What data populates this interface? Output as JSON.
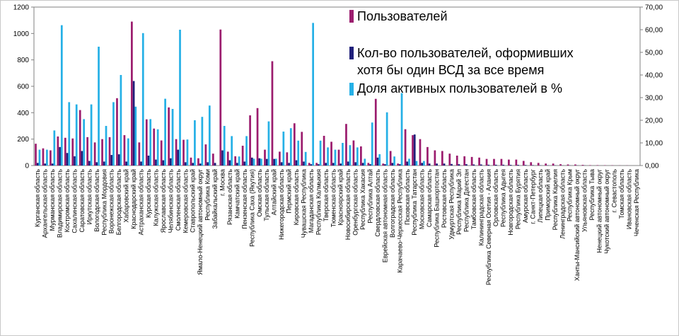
{
  "chart_data": {
    "type": "bar",
    "title": "",
    "xlabel": "",
    "ylabel": "",
    "ylim": [
      0,
      1200
    ],
    "y2lim": [
      0,
      70
    ],
    "yticks": [
      0,
      200,
      400,
      600,
      800,
      1000,
      1200
    ],
    "y2ticks": [
      "0,00",
      "10,00",
      "20,00",
      "30,00",
      "40,00",
      "50,00",
      "60,00",
      "70,00"
    ],
    "legend_position": "top-right",
    "categories": [
      "Курганская область",
      "Архангельская область",
      "Мурманская область",
      "Владимирская область",
      "Костромская область",
      "Сахалинская область",
      "Саратовская область",
      "Иркутская область",
      "Вологодская область",
      "Республика Мордовия",
      "Воронежская область",
      "Белгородская область",
      "Хабаровский край",
      "Краснодарский край",
      "Астраханская область",
      "Курская область",
      "Калужская область",
      "Ярославская область",
      "Челябинская область",
      "Смоленская область",
      "Кемеровская область",
      "Ставропольский край",
      "Ямало-Ненецкий автономный округ",
      "Республика Коми",
      "Забайкальский край",
      "г. Москва",
      "Рязанская область",
      "Камчатский край",
      "Пензенская область",
      "Республика Саха (Якутия)",
      "Омская область",
      "Тульская область",
      "Алтайский край",
      "Нижегородская область",
      "Пермский край",
      "Кировская область",
      "Чувашская Республика",
      "Магаданская область",
      "Республика Калмыкия",
      "Тверская область",
      "Тюменская область",
      "Красноярский край",
      "Новосибирская область",
      "Оренбургская область",
      "Республика Хакасия",
      "Республика Алтай",
      "Свердловская область",
      "Еврейская автономная область",
      "Волгоградская область",
      "Карачаево-Черкесская Республика",
      "Псковская область",
      "Республика Татарстан",
      "Московская область",
      "Самарская область",
      "Республика Башкортостан",
      "Ростовская область",
      "Удмуртская Республика",
      "Республика Марий Эл",
      "Республика Дагестан",
      "Тамбовская область",
      "Калининградская область",
      "Республика Северная Осетия - Алания",
      "Орловская область",
      "Республика Адыгея",
      "Новгородская область",
      "Республика Бурятия",
      "Амурская область",
      "г. Санкт-Петербург",
      "Липецкая область",
      "Приморский край",
      "Республика Карелия",
      "Ленинградская область",
      "Республика Крым",
      "Ханты-Мансийский автономный округ",
      "Ульяновская область",
      "Республика Тыва",
      "Ненецкий автономный округ",
      "Чукотский автономный округ",
      "г. Севастополь",
      "Томская область",
      "Ивановская область",
      "Чеченская Республика"
    ],
    "series": [
      {
        "name": "Пользователей",
        "color": "#9b1c6e",
        "axis": "left",
        "values": [
          165,
          130,
          115,
          220,
          210,
          205,
          420,
          215,
          175,
          200,
          215,
          510,
          230,
          1090,
          175,
          350,
          280,
          190,
          440,
          200,
          195,
          60,
          55,
          160,
          90,
          1030,
          105,
          70,
          150,
          380,
          435,
          120,
          790,
          105,
          100,
          320,
          255,
          20,
          20,
          225,
          180,
          120,
          315,
          190,
          145,
          20,
          505,
          15,
          110,
          15,
          275,
          230,
          200,
          140,
          115,
          110,
          90,
          75,
          70,
          65,
          60,
          50,
          50,
          50,
          45,
          45,
          35,
          25,
          20,
          15,
          15,
          10,
          8,
          8,
          5,
          3,
          3,
          2,
          2,
          1,
          1,
          0
        ]
      },
      {
        "name": "Кол-во пользователей, оформивших хотя бы один ВСД  за все время",
        "color": "#1f1f7a",
        "axis": "left",
        "values": [
          20,
          15,
          15,
          140,
          95,
          70,
          110,
          35,
          25,
          30,
          80,
          85,
          30,
          640,
          30,
          75,
          45,
          40,
          55,
          120,
          25,
          20,
          15,
          25,
          20,
          115,
          40,
          20,
          30,
          60,
          55,
          50,
          50,
          25,
          20,
          40,
          30,
          10,
          10,
          20,
          20,
          15,
          30,
          25,
          20,
          10,
          60,
          10,
          20,
          10,
          30,
          235,
          20,
          15,
          15,
          15,
          12,
          10,
          10,
          8,
          8,
          6,
          6,
          6,
          5,
          5,
          4,
          3,
          2,
          2,
          2,
          1,
          1,
          1,
          1,
          0,
          0,
          0,
          0,
          0,
          0,
          0
        ]
      },
      {
        "name": "Доля активных пользователей в %",
        "color": "#25b0e6",
        "axis": "right",
        "values": [
          7,
          7,
          15.5,
          62,
          28,
          27,
          20.5,
          27,
          52.5,
          17.5,
          28,
          40,
          12,
          26,
          58.5,
          20.5,
          16,
          29.5,
          25,
          60,
          11.5,
          20,
          21.5,
          26.5,
          0,
          17.5,
          13,
          4,
          13,
          3,
          3,
          19.5,
          3,
          15,
          16.5,
          11,
          6,
          63,
          11,
          8,
          7,
          10,
          9,
          8,
          3,
          19,
          5,
          23.5,
          4,
          32,
          3,
          2,
          2,
          0,
          0,
          0,
          0,
          0,
          0,
          0,
          0,
          0,
          0,
          0,
          0,
          0,
          0,
          0,
          0,
          0,
          0,
          0,
          0,
          0,
          0,
          0,
          0,
          0,
          0,
          0,
          0,
          0
        ]
      }
    ]
  }
}
